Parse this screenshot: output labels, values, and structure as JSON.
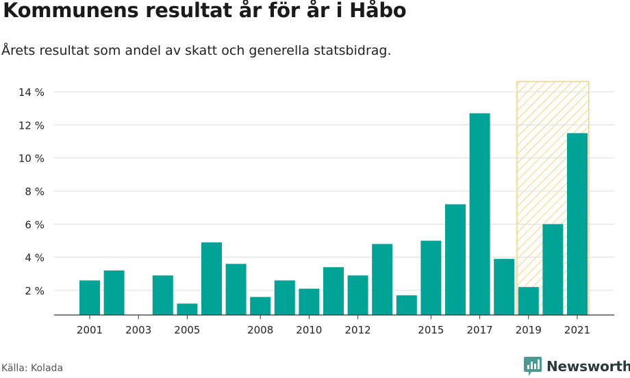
{
  "title": "Kommunens resultat år för år i Håbo",
  "subtitle": "Årets resultat som andel av skatt och generella statsbidrag.",
  "source": "Källa: Kolada",
  "brand": "Newsworthy",
  "colors": {
    "bar": "#00a396",
    "highlight": "#f6d27a",
    "grid": "#dcdcdc",
    "axis": "#333333"
  },
  "chart_data": {
    "type": "bar",
    "x": [
      2001,
      2002,
      2003,
      2004,
      2005,
      2006,
      2007,
      2008,
      2009,
      2010,
      2011,
      2012,
      2013,
      2014,
      2015,
      2016,
      2017,
      2018,
      2019,
      2020,
      2021
    ],
    "values": [
      2.6,
      3.2,
      0.5,
      2.9,
      1.2,
      4.9,
      3.6,
      1.6,
      2.6,
      2.1,
      3.4,
      2.9,
      4.8,
      1.7,
      5.0,
      7.2,
      12.7,
      3.9,
      2.2,
      6.0,
      11.5
    ],
    "x_tick_labels": [
      "2001",
      "2003",
      "2005",
      "2008",
      "2010",
      "2012",
      "2015",
      "2017",
      "2019",
      "2021"
    ],
    "y_tick_labels": [
      "2 %",
      "4 %",
      "6 %",
      "8 %",
      "10 %",
      "12 %",
      "14 %"
    ],
    "y_ticks": [
      2,
      4,
      6,
      8,
      10,
      12,
      14
    ],
    "ylim": [
      0.5,
      14.6
    ],
    "grid": true,
    "highlight_range": [
      2019,
      2021
    ]
  }
}
